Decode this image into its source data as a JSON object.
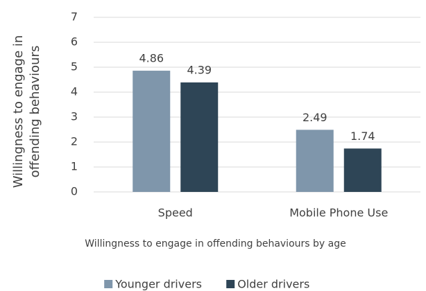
{
  "chart_data": {
    "type": "bar",
    "ylabel": "Willingness to engage in offending behaviours",
    "xlabel": "Willingness to engage in offending behaviours by age",
    "categories": [
      "Speed",
      "Mobile Phone Use"
    ],
    "series": [
      {
        "name": "Younger drivers",
        "color": "#7f96ab",
        "values": [
          4.86,
          2.49
        ]
      },
      {
        "name": "Older drivers",
        "color": "#2e4556",
        "values": [
          4.39,
          1.74
        ]
      }
    ],
    "ylim": [
      0,
      7
    ],
    "yticks": [
      0,
      1,
      2,
      3,
      4,
      5,
      6,
      7
    ],
    "grid": true,
    "legend": "bottom"
  }
}
